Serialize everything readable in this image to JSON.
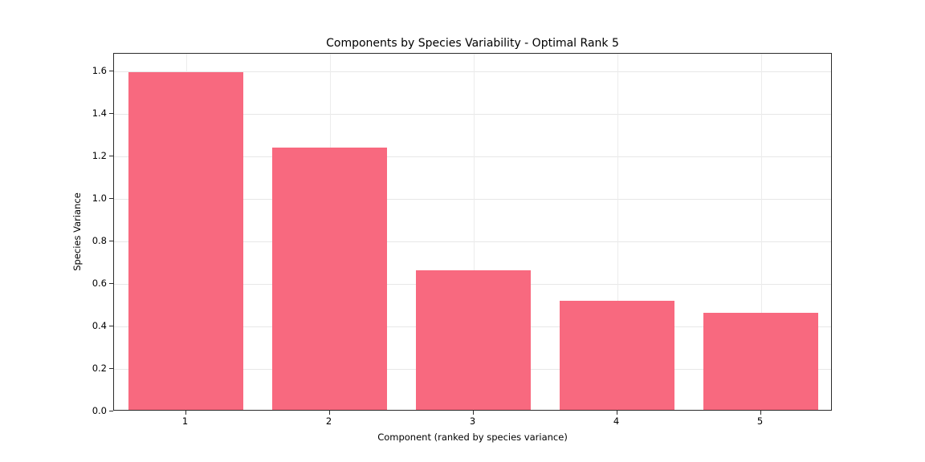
{
  "chart_data": {
    "type": "bar",
    "title": "Components by Species Variability - Optimal Rank 5",
    "xlabel": "Component (ranked by species variance)",
    "ylabel": "Species Variance",
    "categories": [
      "1",
      "2",
      "3",
      "4",
      "5"
    ],
    "values": [
      1.59,
      1.235,
      0.655,
      0.515,
      0.455
    ],
    "ylim": [
      0,
      1.683
    ],
    "yticks": [
      0.0,
      0.2,
      0.4,
      0.6,
      0.8,
      1.0,
      1.2,
      1.4,
      1.6
    ],
    "ytick_labels": [
      "0.0",
      "0.2",
      "0.4",
      "0.6",
      "0.8",
      "1.0",
      "1.2",
      "1.4",
      "1.6"
    ],
    "bar_color": "#f8697f",
    "grid": true,
    "legend": "none"
  }
}
